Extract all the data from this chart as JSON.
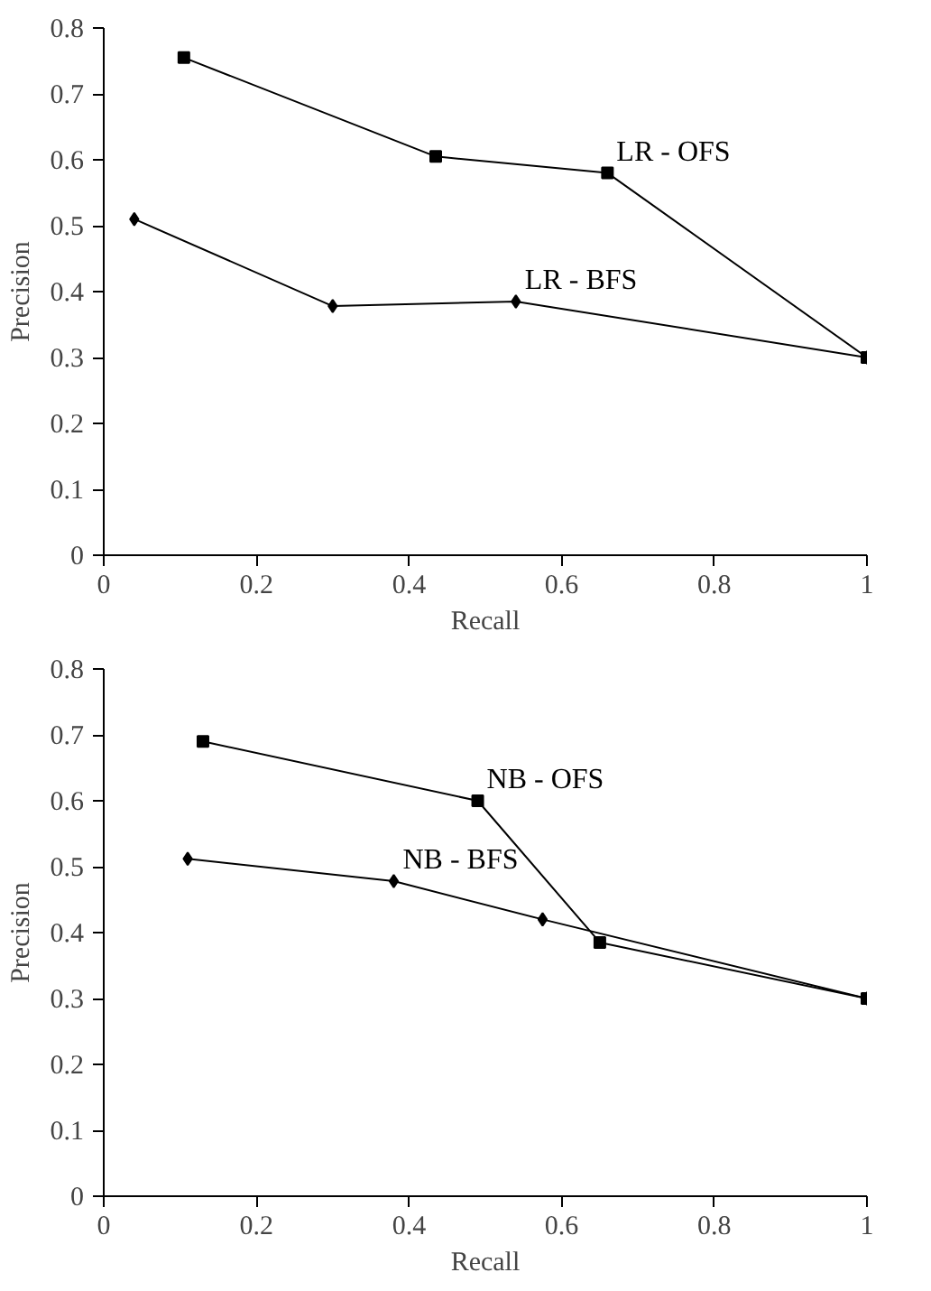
{
  "chart_data": [
    {
      "type": "line",
      "xlabel": "Recall",
      "ylabel": "Precision",
      "xlim": [
        0,
        1
      ],
      "ylim": [
        0,
        0.8
      ],
      "xticks": [
        0,
        0.2,
        0.4,
        0.6,
        0.8,
        1
      ],
      "yticks": [
        0,
        0.1,
        0.2,
        0.3,
        0.4,
        0.5,
        0.6,
        0.7,
        0.8
      ],
      "grid": false,
      "series": [
        {
          "color": "#000000",
          "marker": "square",
          "x": [
            0.105,
            0.435,
            0.66,
            1.0
          ],
          "values": [
            0.755,
            0.605,
            0.58,
            0.3
          ]
        },
        {
          "color": "#000000",
          "marker": "diamond",
          "x": [
            0.04,
            0.3,
            0.54,
            1.0
          ],
          "values": [
            0.51,
            0.378,
            0.385,
            0.3
          ]
        }
      ],
      "annotations": [
        {
          "text": "LR - OFS",
          "x": 0.66,
          "y": 0.58
        },
        {
          "text": "LR - BFS",
          "x": 0.54,
          "y": 0.385
        }
      ]
    },
    {
      "type": "line",
      "xlabel": "Recall",
      "ylabel": "Precision",
      "xlim": [
        0,
        1
      ],
      "ylim": [
        0,
        0.8
      ],
      "xticks": [
        0,
        0.2,
        0.4,
        0.6,
        0.8,
        1
      ],
      "yticks": [
        0,
        0.1,
        0.2,
        0.3,
        0.4,
        0.5,
        0.6,
        0.7,
        0.8
      ],
      "grid": false,
      "series": [
        {
          "color": "#000000",
          "marker": "square",
          "x": [
            0.13,
            0.49,
            0.65,
            1.0
          ],
          "values": [
            0.69,
            0.6,
            0.385,
            0.3
          ]
        },
        {
          "color": "#000000",
          "marker": "diamond",
          "x": [
            0.11,
            0.38,
            0.575,
            1.0
          ],
          "values": [
            0.512,
            0.478,
            0.42,
            0.3
          ]
        }
      ],
      "annotations": [
        {
          "text": "NB - OFS",
          "x": 0.49,
          "y": 0.6
        },
        {
          "text": "NB - BFS",
          "x": 0.38,
          "y": 0.478
        }
      ]
    }
  ]
}
